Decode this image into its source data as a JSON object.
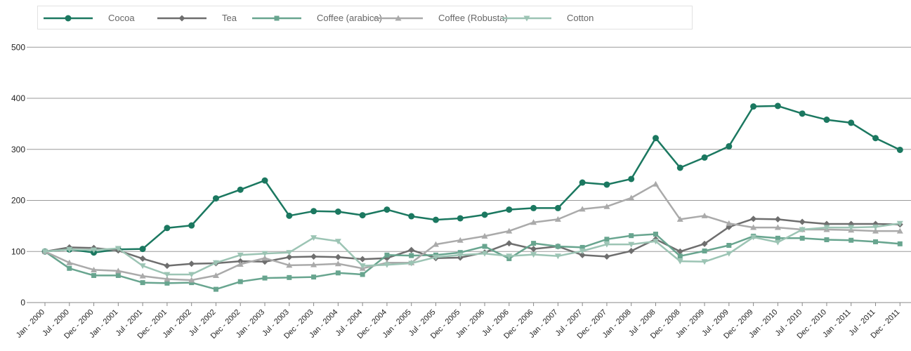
{
  "chart_data": {
    "type": "line",
    "title": "",
    "xlabel": "",
    "ylabel": "",
    "ylim": [
      0,
      500
    ],
    "yticks": [
      0,
      100,
      200,
      300,
      400,
      500
    ],
    "grid": "horizontal",
    "legend_position": "top",
    "x": [
      "Jan - 2000",
      "Jul - 2000",
      "Dec - 2000",
      "Jan - 2001",
      "Jul - 2001",
      "Dec - 2001",
      "Jan - 2002",
      "Jul - 2002",
      "Dec - 2002",
      "Jan - 2003",
      "Jul - 2003",
      "Dec - 2003",
      "Jan - 2004",
      "Jul - 2004",
      "Dec - 2004",
      "Jan - 2005",
      "Jul - 2005",
      "Dec - 2005",
      "Jan - 2006",
      "Jul - 2006",
      "Dec - 2006",
      "Jan - 2007",
      "Jul - 2007",
      "Dec - 2007",
      "Jan - 2008",
      "Jul - 2008",
      "Dec - 2008",
      "Jan - 2009",
      "Jul - 2009",
      "Dec - 2009",
      "Jan - 2010",
      "Jul - 2010",
      "Dec - 2010",
      "Jan - 2011",
      "Jul - 2011",
      "Dec - 2011"
    ],
    "series": [
      {
        "name": "Cocoa",
        "color": "#1b7860",
        "marker": "circle",
        "values": [
          100,
          104,
          98,
          104,
          105,
          146,
          151,
          204,
          221,
          239,
          170,
          179,
          178,
          171,
          182,
          169,
          162,
          165,
          172,
          182,
          185,
          185,
          235,
          231,
          242,
          322,
          264,
          284,
          306,
          384,
          385,
          370,
          358,
          352,
          322,
          299
        ]
      },
      {
        "name": "Tea",
        "color": "#6e6e6e",
        "marker": "diamond",
        "values": [
          100,
          108,
          107,
          102,
          86,
          72,
          76,
          77,
          81,
          80,
          89,
          90,
          89,
          85,
          87,
          103,
          87,
          88,
          98,
          116,
          105,
          110,
          93,
          90,
          101,
          124,
          100,
          115,
          148,
          164,
          163,
          158,
          154,
          154,
          154,
          153
        ]
      },
      {
        "name": "Coffee (arabica)",
        "color": "#68a58f",
        "marker": "square",
        "values": [
          100,
          67,
          53,
          53,
          39,
          38,
          39,
          26,
          41,
          48,
          49,
          50,
          58,
          55,
          93,
          92,
          93,
          98,
          110,
          86,
          116,
          110,
          108,
          124,
          131,
          134,
          91,
          101,
          112,
          130,
          126,
          126,
          123,
          122,
          119,
          115
        ]
      },
      {
        "name": "Coffee (Robusta)",
        "color": "#aaaaaa",
        "marker": "triangle-up",
        "values": [
          100,
          78,
          64,
          62,
          52,
          46,
          44,
          53,
          75,
          87,
          73,
          74,
          76,
          67,
          78,
          78,
          114,
          122,
          130,
          140,
          157,
          163,
          183,
          188,
          205,
          232,
          163,
          170,
          155,
          147,
          147,
          143,
          143,
          142,
          140,
          140
        ]
      },
      {
        "name": "Cotton",
        "color": "#9cc4b4",
        "marker": "triangle-down",
        "values": [
          100,
          104,
          103,
          106,
          72,
          55,
          55,
          78,
          93,
          96,
          98,
          127,
          120,
          72,
          74,
          77,
          89,
          93,
          96,
          91,
          94,
          91,
          101,
          114,
          114,
          120,
          81,
          80,
          96,
          128,
          118,
          143,
          147,
          147,
          148,
          155
        ]
      }
    ]
  }
}
